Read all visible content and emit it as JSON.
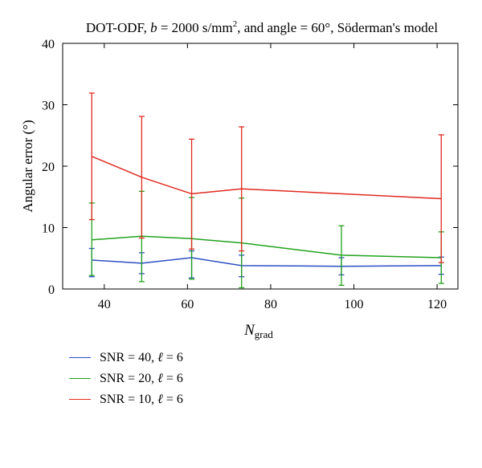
{
  "chart_data": {
    "type": "line",
    "title": "DOT-ODF, b = 2000 s/mm², and angle = 60°, Söderman's model",
    "title_parts": {
      "prefix": "DOT-ODF, ",
      "b_symbol": "b",
      "b_value": " = 2000 s/mm",
      "b_exponent": "2",
      "suffix": ", and angle = 60°, Söderman's model"
    },
    "xlabel": "N",
    "xlabel_subscript": "grad",
    "ylabel": "Angular error (°)",
    "xlim": [
      30,
      125
    ],
    "ylim": [
      0,
      40
    ],
    "xticks": [
      40,
      60,
      80,
      100,
      120
    ],
    "yticks": [
      0,
      10,
      20,
      30,
      40
    ],
    "grid": false,
    "legend_position": "below",
    "series": [
      {
        "name": "SNR = 40, ℓ = 6",
        "label_prefix": "SNR = 40, ",
        "label_symbol": "ℓ",
        "label_suffix": " = 6",
        "color": "#2e4fc4",
        "x": [
          37,
          49,
          61,
          73,
          97,
          121
        ],
        "values": [
          4.7,
          4.2,
          5.1,
          3.8,
          3.7,
          3.8
        ],
        "err_low": [
          2.0,
          2.5,
          1.8,
          2.0,
          2.3,
          2.4
        ],
        "err_high": [
          6.6,
          5.9,
          6.2,
          5.5,
          5.1,
          5.2
        ]
      },
      {
        "name": "SNR = 20, ℓ = 6",
        "label_prefix": "SNR = 20, ",
        "label_symbol": "ℓ",
        "label_suffix": " = 6",
        "color": "#21a31c",
        "x": [
          37,
          49,
          61,
          73,
          97,
          121
        ],
        "values": [
          8.0,
          8.6,
          8.2,
          7.5,
          5.5,
          5.1
        ],
        "err_low": [
          2.2,
          1.2,
          1.6,
          0.2,
          0.6,
          0.9
        ],
        "err_high": [
          14.0,
          15.9,
          14.9,
          14.8,
          10.3,
          9.3
        ]
      },
      {
        "name": "SNR = 10, ℓ = 6",
        "label_prefix": "SNR = 10, ",
        "label_symbol": "ℓ",
        "label_suffix": " = 6",
        "color": "#e02a20",
        "x": [
          37,
          49,
          61,
          73,
          121
        ],
        "values": [
          21.6,
          18.2,
          15.5,
          16.3,
          14.7
        ],
        "err_low": [
          11.3,
          8.3,
          6.5,
          6.2,
          4.3
        ],
        "err_high": [
          31.9,
          28.1,
          24.4,
          26.4,
          25.1
        ]
      }
    ]
  }
}
